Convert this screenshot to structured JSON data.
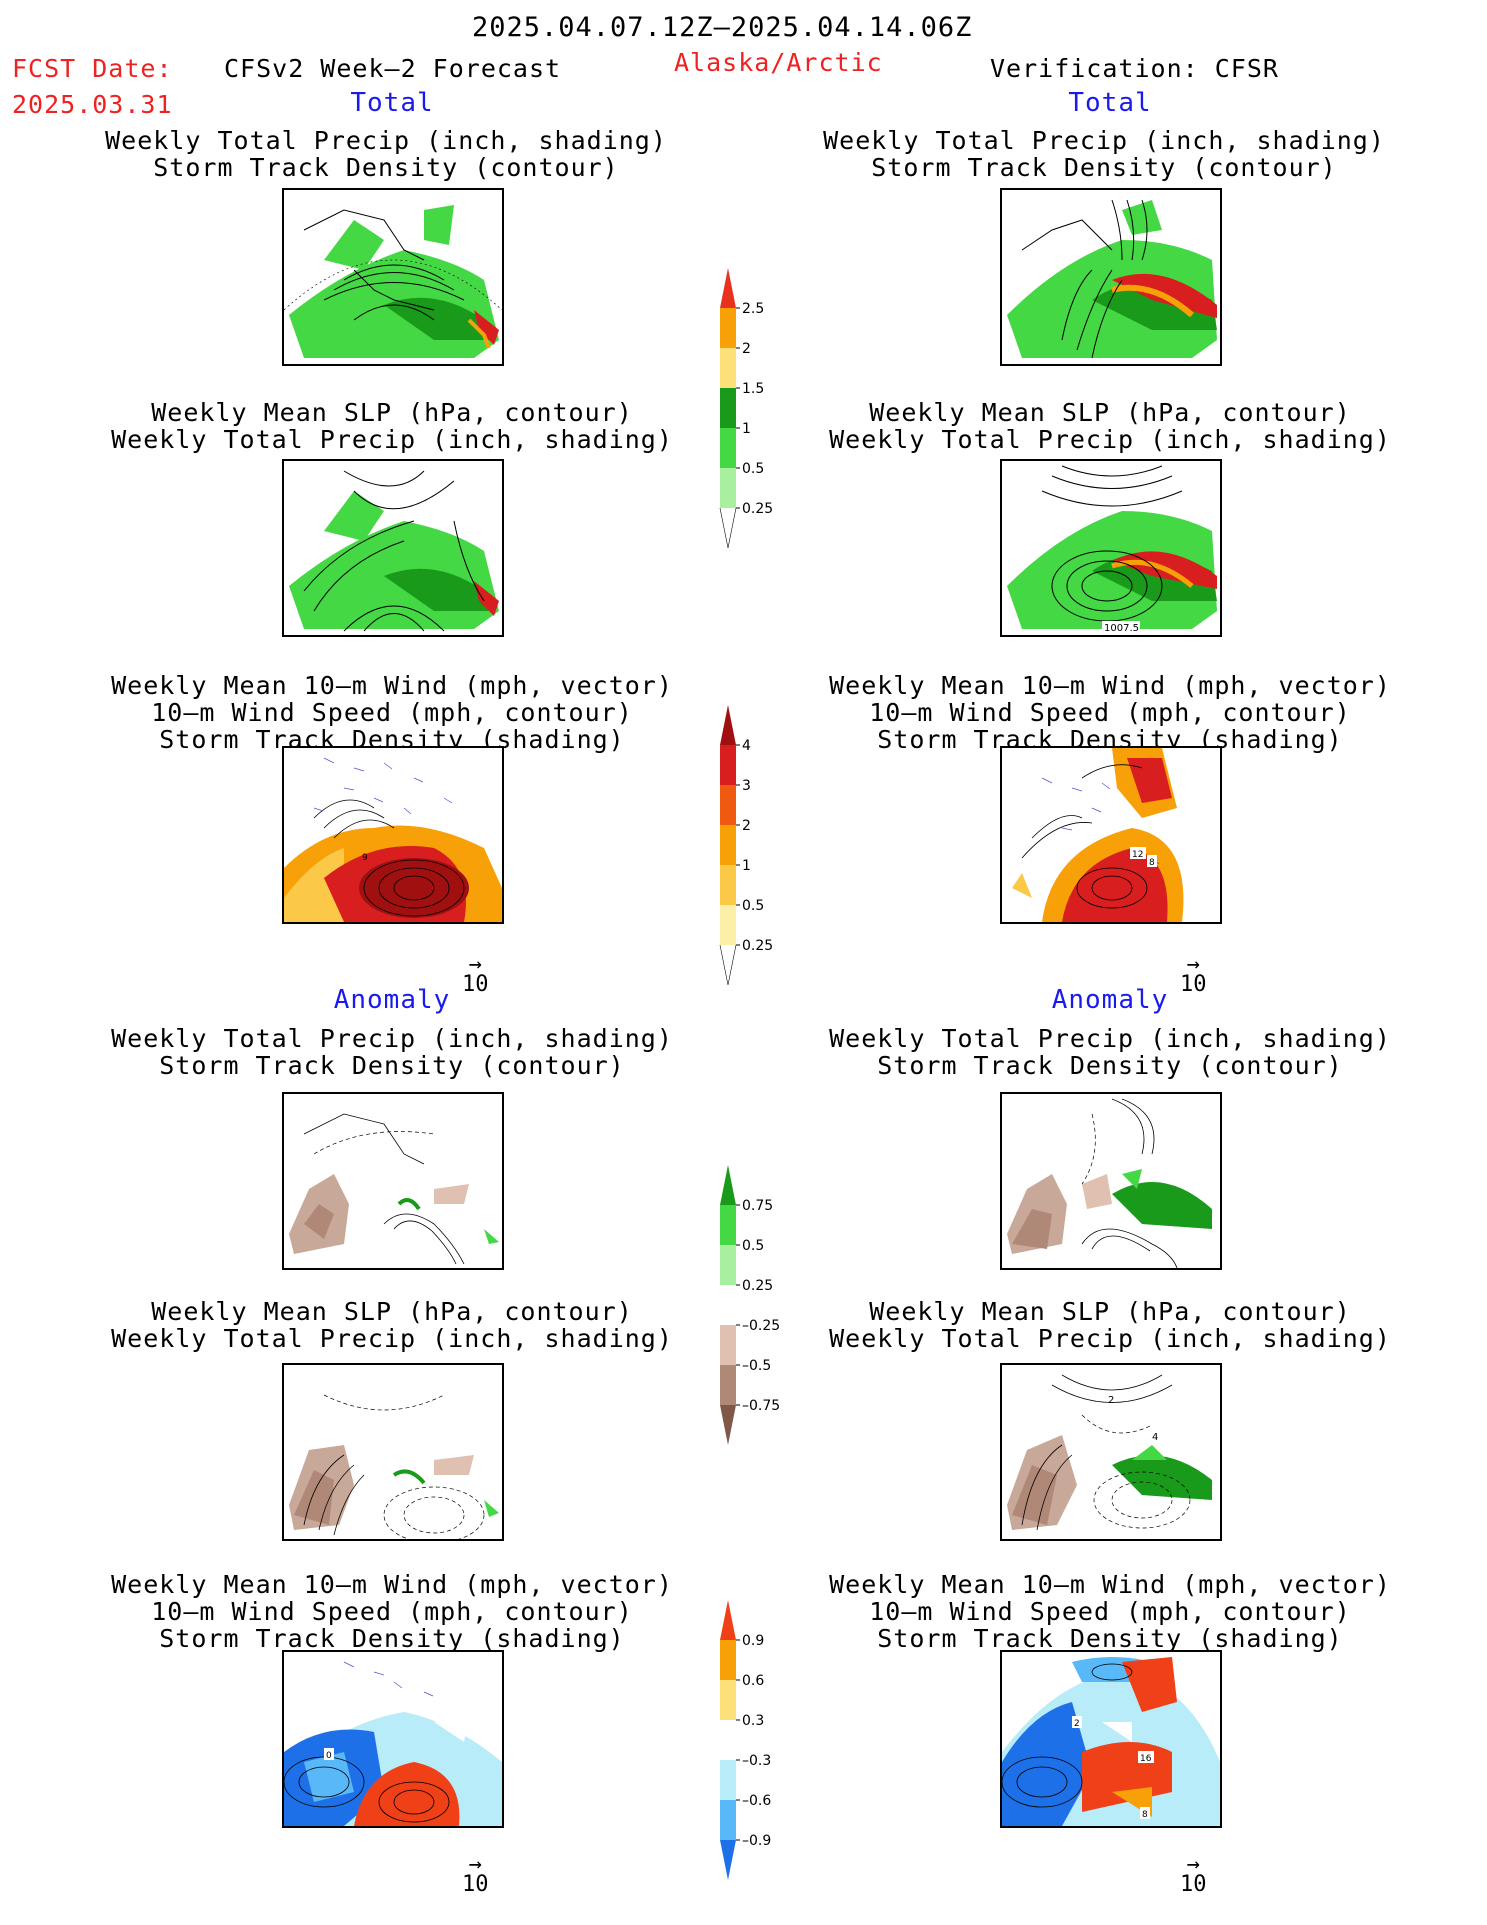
{
  "header": {
    "date_range": "2025.04.07.12Z–2025.04.14.06Z",
    "fcst_date_label": "FCST Date:",
    "fcst_date_value": "2025.03.31",
    "left_product": "CFSv2 Week–2 Forecast",
    "region": "Alaska/Arctic",
    "right_product": "Verification: CFSR"
  },
  "sections": {
    "total_left": "Total",
    "total_right": "Total",
    "anomaly_left": "Anomaly",
    "anomaly_right": "Anomaly"
  },
  "panels": {
    "precip_storm": {
      "line1": "Weekly Total Precip (inch, shading)",
      "line2": "Storm Track Density (contour)"
    },
    "slp_precip": {
      "line1": "Weekly Mean SLP (hPa, contour)",
      "line2": "Weekly Total Precip (inch, shading)"
    },
    "wind_storm": {
      "line1": "Weekly Mean 10–m Wind (mph, vector)",
      "line2": "10–m Wind Speed (mph, contour)",
      "line3": "Storm Track Density (shading)"
    },
    "vector_ref": "10",
    "contour_labels": {
      "fcr_slp": "1007.5",
      "fcr_wind_a": "12",
      "fcr_wind_b": "8",
      "fc_wind_a": "9",
      "anom_fc_wind": "0",
      "anom_fcr_slp_a": "2",
      "anom_fcr_slp_b": "4",
      "anom_fcr_wind_a": "2",
      "anom_fcr_wind_b": "16",
      "anom_fcr_wind_c": "8"
    }
  },
  "colorbars": {
    "precip_total": {
      "labels": [
        "2.5",
        "2",
        "1.5",
        "1",
        "0.5",
        "0.25"
      ],
      "colors": [
        "#e8321e",
        "#f8a008",
        "#fce07a",
        "#1a9a1a",
        "#44d844",
        "#a8f0a0"
      ]
    },
    "storm_total": {
      "labels": [
        "4",
        "3",
        "2",
        "1",
        "0.5",
        "0.25"
      ],
      "colors": [
        "#a01010",
        "#d81e1e",
        "#f05a10",
        "#f8a008",
        "#fcc848",
        "#fcf0a8"
      ]
    },
    "precip_anom": {
      "labels": [
        "0.75",
        "0.5",
        "0.25",
        "–0.25",
        "–0.5",
        "–0.75"
      ],
      "colors": [
        "#1a9a1a",
        "#44d844",
        "#a8f0a0",
        "#ffffff",
        "#e0c0b0",
        "#b08878",
        "#805848"
      ]
    },
    "storm_anom": {
      "labels": [
        "0.9",
        "0.6",
        "0.3",
        "–0.3",
        "–0.6",
        "–0.9"
      ],
      "colors": [
        "#f04018",
        "#f8a008",
        "#fce07a",
        "#ffffff",
        "#b8ecf8",
        "#58b8f8",
        "#1e70e8"
      ]
    }
  },
  "colors": {
    "map_green": "#44d844",
    "map_dark_green": "#1a9a1a",
    "precip_heavy": "#d81e1e",
    "brown": "#c8a898",
    "warm_red": "#b01010",
    "orange": "#f8a008",
    "anom_blue": "#1e70e8",
    "anom_light_blue": "#b8ecf8",
    "anom_red": "#f04018"
  }
}
